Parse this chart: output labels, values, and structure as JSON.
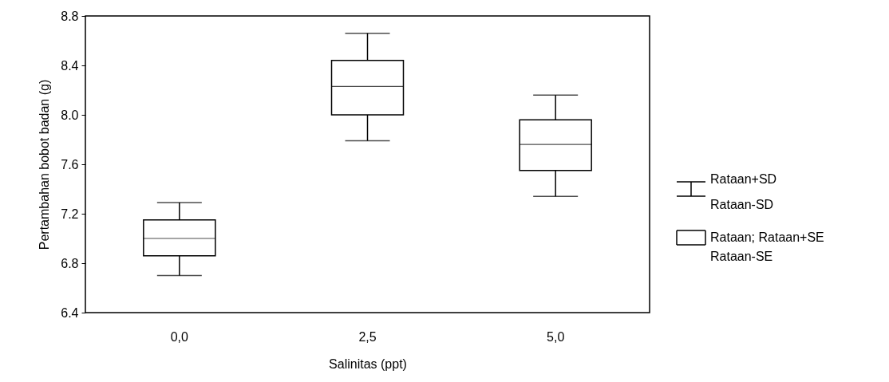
{
  "chart_data": {
    "type": "box",
    "xlabel": "Salinitas (ppt)",
    "ylabel": "Pertambahan bobot badan (g)",
    "categories": [
      "0,0",
      "2,5",
      "5,0"
    ],
    "boxes": [
      {
        "low": 6.7,
        "q1": 6.86,
        "median": 7.0,
        "q3": 7.15,
        "high": 7.29
      },
      {
        "low": 7.79,
        "q1": 8.0,
        "median": 8.23,
        "q3": 8.44,
        "high": 8.66
      },
      {
        "low": 7.34,
        "q1": 7.55,
        "median": 7.76,
        "q3": 7.96,
        "high": 8.16
      }
    ],
    "ylim": [
      6.4,
      8.8
    ],
    "yticks": [
      6.4,
      6.8,
      7.2,
      7.6,
      {
        "value": 8,
        "label": "8.0"
      },
      8.4,
      8.8
    ],
    "grid": false,
    "annotations": [
      "Rataan+SD",
      "Rataan-SD",
      "Rataan; Rataan+SE",
      "Rataan-SE"
    ]
  }
}
